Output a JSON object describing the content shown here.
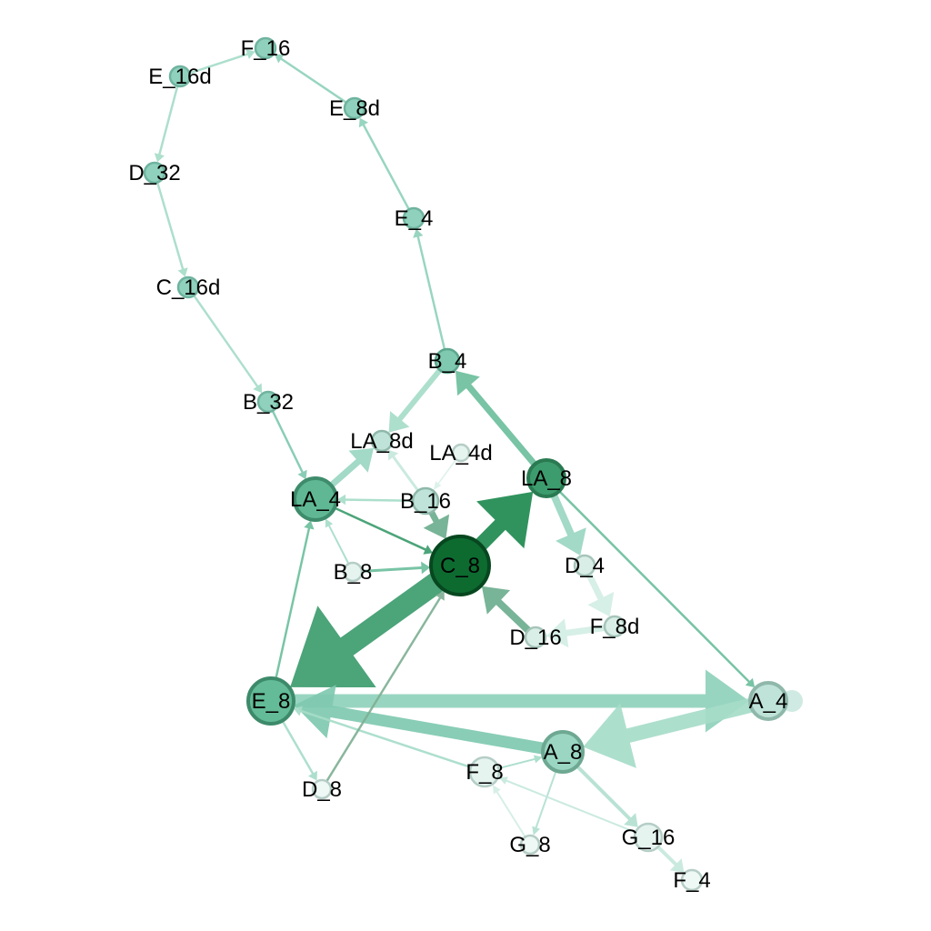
{
  "nodes": [
    {
      "id": "F_16",
      "label": "F_16",
      "fill": "#8fd1bc",
      "stroke": "#6fb39f"
    },
    {
      "id": "E_16d",
      "label": "E_16d",
      "fill": "#8fd1bc",
      "stroke": "#6fb39f"
    },
    {
      "id": "E_8d",
      "label": "E_8d",
      "fill": "#8fd1bc",
      "stroke": "#6fb39f"
    },
    {
      "id": "D_32",
      "label": "D_32",
      "fill": "#8fd1bc",
      "stroke": "#6fb39f"
    },
    {
      "id": "E_4",
      "label": "E_4",
      "fill": "#8fd1bc",
      "stroke": "#6fb39f"
    },
    {
      "id": "C_16d",
      "label": "C_16d",
      "fill": "#8fd1bc",
      "stroke": "#6fb39f"
    },
    {
      "id": "B_4",
      "label": "B_4",
      "fill": "#7fc9b0",
      "stroke": "#5ca68e"
    },
    {
      "id": "B_32",
      "label": "B_32",
      "fill": "#8fd1bc",
      "stroke": "#6fb39f"
    },
    {
      "id": "LA_8d",
      "label": "LA_8d",
      "fill": "#bfe3d8",
      "stroke": "#8fb8ab"
    },
    {
      "id": "LA_4d",
      "label": "LA_4d",
      "fill": "#e6f4f0",
      "stroke": "#b5cdc6"
    },
    {
      "id": "LA_8",
      "label": "LA_8",
      "fill": "#3d9c6e",
      "stroke": "#2a7a52"
    },
    {
      "id": "LA_4",
      "label": "LA_4",
      "fill": "#5fb893",
      "stroke": "#3e8c6c"
    },
    {
      "id": "B_16",
      "label": "B_16",
      "fill": "#bfe3d8",
      "stroke": "#8fb8ab"
    },
    {
      "id": "C_8",
      "label": "C_8",
      "fill": "#0d6b30",
      "stroke": "#07471f"
    },
    {
      "id": "B_8",
      "label": "B_8",
      "fill": "#e6f4f0",
      "stroke": "#b5cdc6"
    },
    {
      "id": "D_4",
      "label": "D_4",
      "fill": "#d9eee7",
      "stroke": "#a7c5bb"
    },
    {
      "id": "F_8d",
      "label": "F_8d",
      "fill": "#d9eee7",
      "stroke": "#a7c5bb"
    },
    {
      "id": "D_16",
      "label": "D_16",
      "fill": "#d9eee7",
      "stroke": "#a7c5bb"
    },
    {
      "id": "E_8",
      "label": "E_8",
      "fill": "#63bb97",
      "stroke": "#3d8a6a"
    },
    {
      "id": "A_4",
      "label": "A_4",
      "fill": "#bfe3d8",
      "stroke": "#8fb8ab"
    },
    {
      "id": "A_8",
      "label": "A_8",
      "fill": "#9ad6c2",
      "stroke": "#6ea893"
    },
    {
      "id": "F_8",
      "label": "F_8",
      "fill": "#e6f4f0",
      "stroke": "#b5cdc6"
    },
    {
      "id": "D_8",
      "label": "D_8",
      "fill": "#eef8f5",
      "stroke": "#b5cdc6"
    },
    {
      "id": "G_8",
      "label": "G_8",
      "fill": "#eef8f5",
      "stroke": "#b5cdc6"
    },
    {
      "id": "G_16",
      "label": "G_16",
      "fill": "#e6f4f0",
      "stroke": "#b5cdc6"
    },
    {
      "id": "F_4",
      "label": "F_4",
      "fill": "#eef8f5",
      "stroke": "#b5cdc6"
    }
  ],
  "edges": [
    {
      "source": "E_16d",
      "target": "F_16",
      "color": "#a6dcc9"
    },
    {
      "source": "E_8d",
      "target": "F_16",
      "color": "#8fd1bc"
    },
    {
      "source": "E_16d",
      "target": "D_32",
      "color": "#a6dcc9"
    },
    {
      "source": "E_4",
      "target": "E_8d",
      "color": "#8fd1bc"
    },
    {
      "source": "D_32",
      "target": "C_16d",
      "color": "#a6dcc9"
    },
    {
      "source": "B_4",
      "target": "E_4",
      "color": "#8fd1bc"
    },
    {
      "source": "C_16d",
      "target": "B_32",
      "color": "#a6dcc9"
    },
    {
      "source": "B_32",
      "target": "LA_4",
      "color": "#7fc9b0"
    },
    {
      "source": "LA_8",
      "target": "B_4",
      "color": "#6cbf9d"
    },
    {
      "source": "B_4",
      "target": "LA_8d",
      "color": "#a6dcc9"
    },
    {
      "source": "LA_4",
      "target": "LA_8d",
      "color": "#9ad6c2"
    },
    {
      "source": "B_16",
      "target": "LA_8d",
      "color": "#c6e8dd"
    },
    {
      "source": "LA_4d",
      "target": "B_16",
      "color": "#d9f0e8"
    },
    {
      "source": "B_16",
      "target": "LA_4",
      "color": "#a6dcc9"
    },
    {
      "source": "LA_4",
      "target": "C_8",
      "color": "#3d9c6e"
    },
    {
      "source": "B_16",
      "target": "C_8",
      "color": "#6cae8e"
    },
    {
      "source": "C_8",
      "target": "LA_8",
      "color": "#1e8a50"
    },
    {
      "source": "B_8",
      "target": "C_8",
      "color": "#6cbf9d"
    },
    {
      "source": "B_8",
      "target": "LA_4",
      "color": "#a6dcc9"
    },
    {
      "source": "LA_8",
      "target": "D_4",
      "color": "#9ad6c2"
    },
    {
      "source": "D_4",
      "target": "F_8d",
      "color": "#d2eee5"
    },
    {
      "source": "F_8d",
      "target": "D_16",
      "color": "#d2eee5"
    },
    {
      "source": "D_16",
      "target": "C_8",
      "color": "#6cae8e"
    },
    {
      "source": "C_8",
      "target": "E_8",
      "color": "#3d9c6e"
    },
    {
      "source": "LA_8",
      "target": "A_4",
      "color": "#6cbf9d"
    },
    {
      "source": "E_8",
      "target": "LA_4",
      "color": "#6cbf9d"
    },
    {
      "source": "E_8",
      "target": "A_4",
      "color": "#8fd1bc"
    },
    {
      "source": "A_4",
      "target": "A_8",
      "color": "#a6dcc9"
    },
    {
      "source": "A_8",
      "target": "E_8",
      "color": "#7fc9b0"
    },
    {
      "source": "F_8",
      "target": "E_8",
      "color": "#a6dcc9"
    },
    {
      "source": "E_8",
      "target": "D_8",
      "color": "#a6dcc9"
    },
    {
      "source": "D_8",
      "target": "C_8",
      "color": "#7fb094"
    },
    {
      "source": "F_8",
      "target": "A_8",
      "color": "#a6dcc9"
    },
    {
      "source": "A_8",
      "target": "G_8",
      "color": "#b3e0d1"
    },
    {
      "source": "A_8",
      "target": "G_16",
      "color": "#b3e0d1"
    },
    {
      "source": "G_16",
      "target": "F_8",
      "color": "#c6e8dd"
    },
    {
      "source": "G_8",
      "target": "F_8",
      "color": "#d2eee5"
    },
    {
      "source": "G_16",
      "target": "F_4",
      "color": "#c6e8dd"
    },
    {
      "source": "A_4",
      "target": "A_4",
      "color": "#bfe3d8"
    }
  ]
}
